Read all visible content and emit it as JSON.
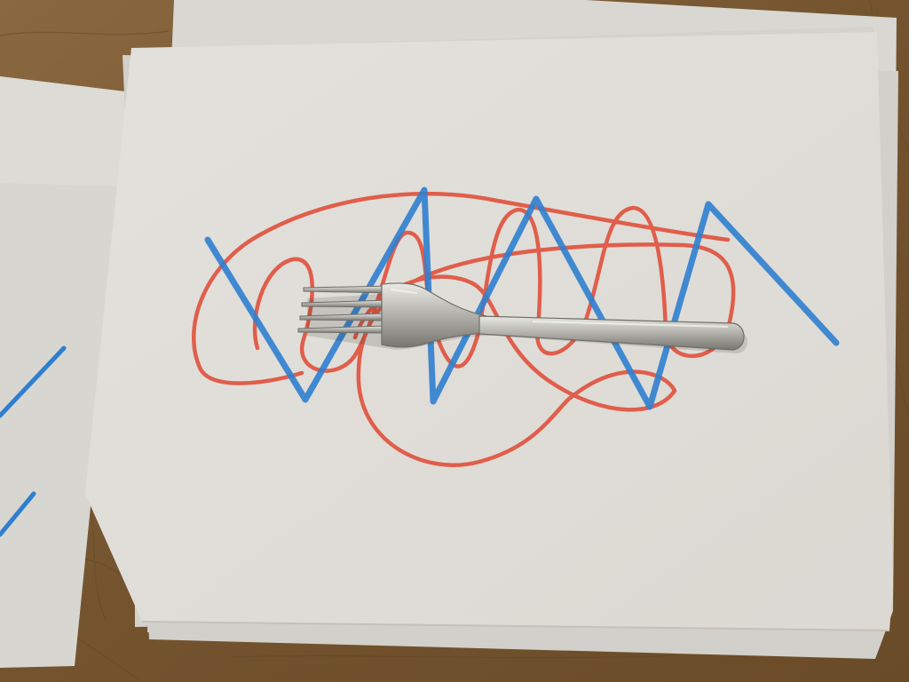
{
  "scene": {
    "subject": "fork-on-scribbled-paper",
    "colors": {
      "table": "#7a5a35",
      "table_grain": "#5f4426",
      "paper": "#e6e4df",
      "paper_shadow": "#cfccc5",
      "blue_marker": "#2f7fd0",
      "red_marker": "#e0523f",
      "fork_steel": "#b9b8b2",
      "fork_highlight": "#e6e6e2",
      "fork_shadow": "#6f6e68"
    }
  }
}
